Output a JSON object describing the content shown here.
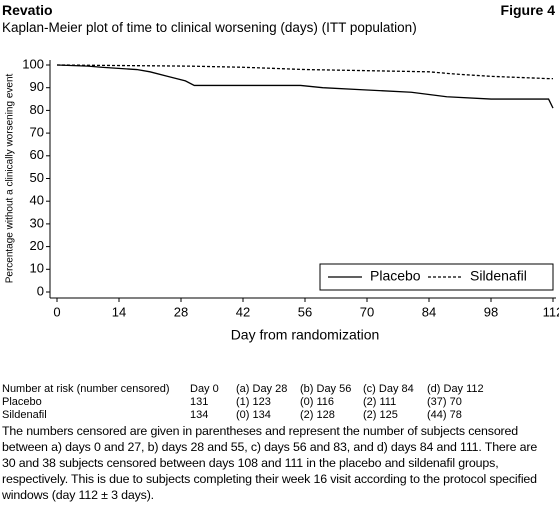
{
  "header": {
    "title": "Revatio",
    "figure": "Figure 4",
    "subtitle": "Kaplan-Meier plot of time to clinical worsening (days) (ITT population)"
  },
  "chart_data": {
    "type": "line",
    "xlabel": "Day from randomization",
    "ylabel": "Percentage without a clinically worsening event",
    "xlim": [
      0,
      112
    ],
    "xticks": [
      0,
      14,
      28,
      42,
      56,
      70,
      84,
      98,
      112
    ],
    "ylim": [
      0,
      100
    ],
    "yticks": [
      0,
      10,
      20,
      30,
      40,
      50,
      60,
      70,
      80,
      90,
      100
    ],
    "legend": "lower right",
    "series": [
      {
        "name": "Placebo",
        "color": "#000000",
        "line_style": "solid",
        "x": [
          0,
          7,
          10,
          18,
          21,
          25,
          29,
          31,
          55,
          60,
          70,
          80,
          84,
          88,
          98,
          111,
          111.5,
          112
        ],
        "values": [
          100,
          99.5,
          99,
          98,
          97,
          95,
          93,
          91,
          91,
          90,
          89,
          88,
          87,
          86,
          85,
          85,
          83,
          81
        ]
      },
      {
        "name": "Sildenafil",
        "color": "#000000",
        "line_style": "dashed",
        "x": [
          0,
          30,
          42,
          56,
          84,
          90,
          98,
          111,
          112
        ],
        "values": [
          100,
          99.5,
          99,
          98,
          97,
          96,
          95,
          94,
          94
        ]
      }
    ]
  },
  "table": {
    "header": [
      "Number at risk (number censored)",
      "Day 0",
      "(a) Day 28",
      "(b) Day 56",
      "(c) Day 84",
      "(d) Day 112"
    ],
    "rows": [
      [
        "Placebo",
        "131",
        "(1) 123",
        "(0) 116",
        "(2) 111",
        "(37) 70"
      ],
      [
        "Sildenafil",
        "134",
        "(0) 134",
        "(2) 128",
        "(2) 125",
        "(44) 78"
      ]
    ]
  },
  "note": "The numbers censored are given in parentheses and represent the number of subjects censored between a) days 0 and 27, b) days 28 and 55, c) days 56 and 83, and d) days 84 and 111. There are 30 and 38 subjects censored between days 108 and 111 in the placebo and sildenafil groups, respectively. This is due to subjects completing their week 16 visit according to the protocol specified windows (day 112 ± 3 days)."
}
